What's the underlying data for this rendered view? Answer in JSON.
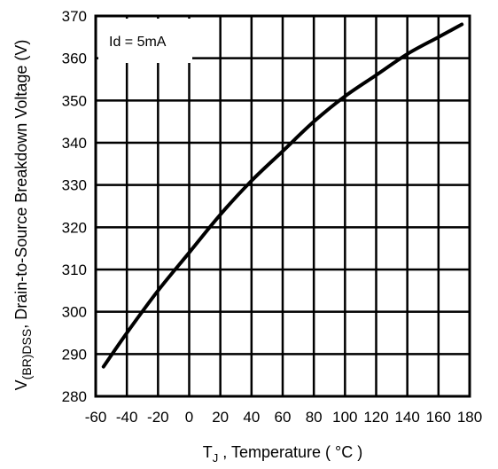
{
  "chart_data": {
    "type": "line",
    "ylabel_main": "V",
    "ylabel_sub": "(BR)DSS",
    "ylabel_rest": ", Drain-to-Source Breakdown Voltage (V)",
    "xlabel_main": "T",
    "xlabel_sub": "J",
    "xlabel_rest": " , Temperature ( °C )",
    "annotation": "Id = 5mA",
    "xlim": [
      -60,
      180
    ],
    "ylim": [
      280,
      370
    ],
    "x_ticks": [
      -60,
      -40,
      -20,
      0,
      20,
      40,
      60,
      80,
      100,
      120,
      140,
      160,
      180
    ],
    "y_ticks": [
      280,
      290,
      300,
      310,
      320,
      330,
      340,
      350,
      360,
      370
    ],
    "grid": true,
    "series": [
      {
        "x": [
          -55,
          -40,
          -20,
          0,
          20,
          40,
          60,
          80,
          100,
          120,
          140,
          160,
          175
        ],
        "y": [
          287,
          295,
          305,
          314,
          323,
          331,
          338,
          345,
          351,
          356,
          361,
          365,
          368
        ]
      }
    ]
  }
}
